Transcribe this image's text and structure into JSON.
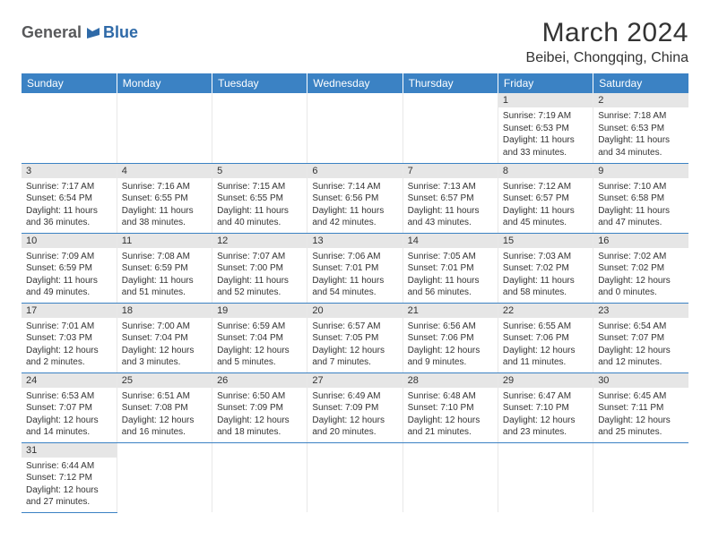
{
  "logo": {
    "text1": "General",
    "text2": "Blue"
  },
  "title": "March 2024",
  "location": "Beibei, Chongqing, China",
  "colors": {
    "header_bg": "#3b82c4",
    "header_text": "#ffffff",
    "daynum_bg": "#e6e6e6",
    "border": "#3b82c4",
    "body_text": "#333333",
    "logo_gray": "#58595b",
    "logo_blue": "#2f6aa8"
  },
  "dayNames": [
    "Sunday",
    "Monday",
    "Tuesday",
    "Wednesday",
    "Thursday",
    "Friday",
    "Saturday"
  ],
  "weeks": [
    [
      null,
      null,
      null,
      null,
      null,
      {
        "n": "1",
        "sr": "7:19 AM",
        "ss": "6:53 PM",
        "dh": "11",
        "dm": "33"
      },
      {
        "n": "2",
        "sr": "7:18 AM",
        "ss": "6:53 PM",
        "dh": "11",
        "dm": "34"
      }
    ],
    [
      {
        "n": "3",
        "sr": "7:17 AM",
        "ss": "6:54 PM",
        "dh": "11",
        "dm": "36"
      },
      {
        "n": "4",
        "sr": "7:16 AM",
        "ss": "6:55 PM",
        "dh": "11",
        "dm": "38"
      },
      {
        "n": "5",
        "sr": "7:15 AM",
        "ss": "6:55 PM",
        "dh": "11",
        "dm": "40"
      },
      {
        "n": "6",
        "sr": "7:14 AM",
        "ss": "6:56 PM",
        "dh": "11",
        "dm": "42"
      },
      {
        "n": "7",
        "sr": "7:13 AM",
        "ss": "6:57 PM",
        "dh": "11",
        "dm": "43"
      },
      {
        "n": "8",
        "sr": "7:12 AM",
        "ss": "6:57 PM",
        "dh": "11",
        "dm": "45"
      },
      {
        "n": "9",
        "sr": "7:10 AM",
        "ss": "6:58 PM",
        "dh": "11",
        "dm": "47"
      }
    ],
    [
      {
        "n": "10",
        "sr": "7:09 AM",
        "ss": "6:59 PM",
        "dh": "11",
        "dm": "49"
      },
      {
        "n": "11",
        "sr": "7:08 AM",
        "ss": "6:59 PM",
        "dh": "11",
        "dm": "51"
      },
      {
        "n": "12",
        "sr": "7:07 AM",
        "ss": "7:00 PM",
        "dh": "11",
        "dm": "52"
      },
      {
        "n": "13",
        "sr": "7:06 AM",
        "ss": "7:01 PM",
        "dh": "11",
        "dm": "54"
      },
      {
        "n": "14",
        "sr": "7:05 AM",
        "ss": "7:01 PM",
        "dh": "11",
        "dm": "56"
      },
      {
        "n": "15",
        "sr": "7:03 AM",
        "ss": "7:02 PM",
        "dh": "11",
        "dm": "58"
      },
      {
        "n": "16",
        "sr": "7:02 AM",
        "ss": "7:02 PM",
        "dh": "12",
        "dm": "0"
      }
    ],
    [
      {
        "n": "17",
        "sr": "7:01 AM",
        "ss": "7:03 PM",
        "dh": "12",
        "dm": "2"
      },
      {
        "n": "18",
        "sr": "7:00 AM",
        "ss": "7:04 PM",
        "dh": "12",
        "dm": "3"
      },
      {
        "n": "19",
        "sr": "6:59 AM",
        "ss": "7:04 PM",
        "dh": "12",
        "dm": "5"
      },
      {
        "n": "20",
        "sr": "6:57 AM",
        "ss": "7:05 PM",
        "dh": "12",
        "dm": "7"
      },
      {
        "n": "21",
        "sr": "6:56 AM",
        "ss": "7:06 PM",
        "dh": "12",
        "dm": "9"
      },
      {
        "n": "22",
        "sr": "6:55 AM",
        "ss": "7:06 PM",
        "dh": "12",
        "dm": "11"
      },
      {
        "n": "23",
        "sr": "6:54 AM",
        "ss": "7:07 PM",
        "dh": "12",
        "dm": "12"
      }
    ],
    [
      {
        "n": "24",
        "sr": "6:53 AM",
        "ss": "7:07 PM",
        "dh": "12",
        "dm": "14"
      },
      {
        "n": "25",
        "sr": "6:51 AM",
        "ss": "7:08 PM",
        "dh": "12",
        "dm": "16"
      },
      {
        "n": "26",
        "sr": "6:50 AM",
        "ss": "7:09 PM",
        "dh": "12",
        "dm": "18"
      },
      {
        "n": "27",
        "sr": "6:49 AM",
        "ss": "7:09 PM",
        "dh": "12",
        "dm": "20"
      },
      {
        "n": "28",
        "sr": "6:48 AM",
        "ss": "7:10 PM",
        "dh": "12",
        "dm": "21"
      },
      {
        "n": "29",
        "sr": "6:47 AM",
        "ss": "7:10 PM",
        "dh": "12",
        "dm": "23"
      },
      {
        "n": "30",
        "sr": "6:45 AM",
        "ss": "7:11 PM",
        "dh": "12",
        "dm": "25"
      }
    ],
    [
      {
        "n": "31",
        "sr": "6:44 AM",
        "ss": "7:12 PM",
        "dh": "12",
        "dm": "27"
      },
      null,
      null,
      null,
      null,
      null,
      null
    ]
  ],
  "labels": {
    "sunrise": "Sunrise:",
    "sunset": "Sunset:",
    "daylight": "Daylight:",
    "hours": "hours",
    "and": "and",
    "minutes": "minutes."
  }
}
